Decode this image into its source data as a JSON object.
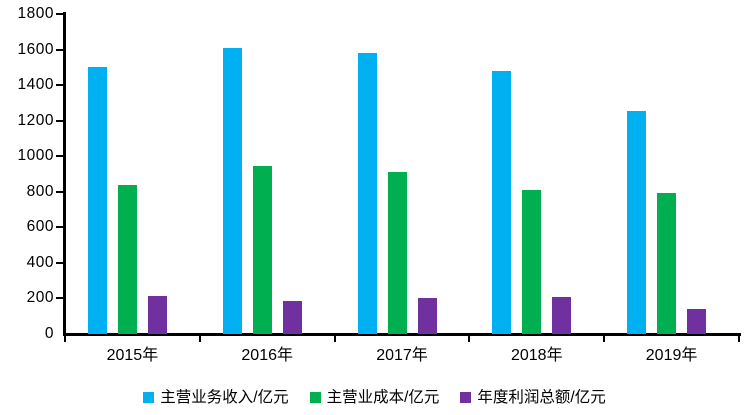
{
  "chart_data": {
    "type": "bar",
    "title": "",
    "xlabel": "",
    "ylabel": "",
    "categories": [
      "2015年",
      "2016年",
      "2017年",
      "2018年",
      "2019年"
    ],
    "series": [
      {
        "name": "主营业务收入/亿元",
        "color": "#00B0F0",
        "values": [
          1500,
          1610,
          1580,
          1480,
          1255
        ]
      },
      {
        "name": "主营业成本/亿元",
        "color": "#00B050",
        "values": [
          840,
          945,
          910,
          810,
          795
        ]
      },
      {
        "name": "年度利润总额/亿元",
        "color": "#7030A0",
        "values": [
          215,
          185,
          200,
          210,
          140
        ]
      }
    ],
    "ylim": [
      0,
      1800
    ],
    "ytick_interval": 200,
    "ytick_labels": [
      "0",
      "200",
      "400",
      "600",
      "800",
      "1000",
      "1200",
      "1400",
      "1600",
      "1800"
    ],
    "grid": false,
    "legend_position": "bottom",
    "axis_color": "#000000",
    "background_color": "#ffffff"
  }
}
